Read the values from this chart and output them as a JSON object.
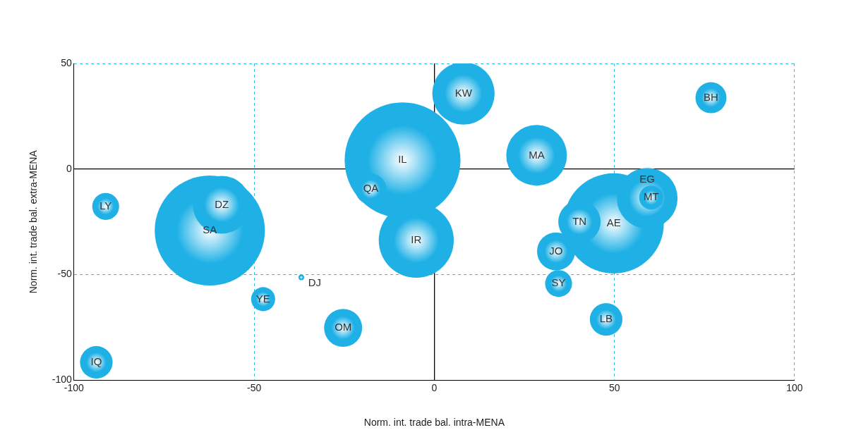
{
  "chart_data": {
    "type": "bubble",
    "xlabel": "Norm. int. trade bal. intra-MENA",
    "ylabel": "Norm. int. trade bal. extra-MENA",
    "xlim": [
      -100,
      100
    ],
    "xticks": [
      -100,
      -50,
      0,
      50,
      100
    ],
    "ylim": [
      -100,
      50
    ],
    "yticks": [
      -100,
      -50,
      0,
      50
    ],
    "grid": true,
    "legend": false,
    "series": [
      {
        "color": "#1fb1e6",
        "x": [
          8.1,
          76.8,
          -8.8,
          28.4,
          -17.6,
          -91.2,
          -59,
          -62.3,
          -5,
          59.1,
          60.2,
          49.8,
          40.3,
          33.8,
          34.5,
          47.7,
          -36.9,
          -47.5,
          -25.3,
          -93.8
        ],
        "values": [
          35.8,
          33.8,
          4.2,
          6.5,
          -9.5,
          -17.7,
          -16.9,
          -29.1,
          -33.7,
          -13.8,
          -13.5,
          -25.7,
          -24.9,
          -39,
          -54.2,
          -71.2,
          -51.3,
          -61.6,
          -75.2,
          -91.5
        ],
        "sizes": [
          0.29,
          0.072,
          1,
          0.275,
          0.072,
          0.054,
          0.25,
          0.905,
          0.42,
          0.275,
          0.043,
          0.75,
          0.134,
          0.108,
          0.054,
          0.079,
          0.0024,
          0.043,
          0.108,
          0.079
        ]
      }
    ],
    "annotations": [
      {
        "text": "KW",
        "x": 8.1,
        "y": 35.8
      },
      {
        "text": "BH",
        "x": 76.8,
        "y": 33.8
      },
      {
        "text": "IL",
        "x": -8.8,
        "y": 4.2
      },
      {
        "text": "MA",
        "x": 28.4,
        "y": 6.5
      },
      {
        "text": "QA",
        "x": -17.6,
        "y": -9.5
      },
      {
        "text": "LY",
        "x": -91.2,
        "y": -17.7
      },
      {
        "text": "DZ",
        "x": -59,
        "y": -16.9
      },
      {
        "text": "SA",
        "x": -62.3,
        "y": -29.1
      },
      {
        "text": "IR",
        "x": -5,
        "y": -33.7
      },
      {
        "text": "EG",
        "x": 59.1,
        "y": -13.8
      },
      {
        "text": "MT",
        "x": 60.2,
        "y": -13.5
      },
      {
        "text": "AE",
        "x": 49.8,
        "y": -25.7
      },
      {
        "text": "TN",
        "x": 40.3,
        "y": -24.9
      },
      {
        "text": "JO",
        "x": 33.8,
        "y": -39
      },
      {
        "text": "SY",
        "x": 34.5,
        "y": -54.2
      },
      {
        "text": "LB",
        "x": 47.7,
        "y": -71.2
      },
      {
        "text": "DJ",
        "x": -36.9,
        "y": -51.3
      },
      {
        "text": "YE",
        "x": -47.5,
        "y": -61.6
      },
      {
        "text": "OM",
        "x": -25.3,
        "y": -75.2
      },
      {
        "text": "IQ",
        "x": -93.8,
        "y": -91.5
      }
    ]
  }
}
